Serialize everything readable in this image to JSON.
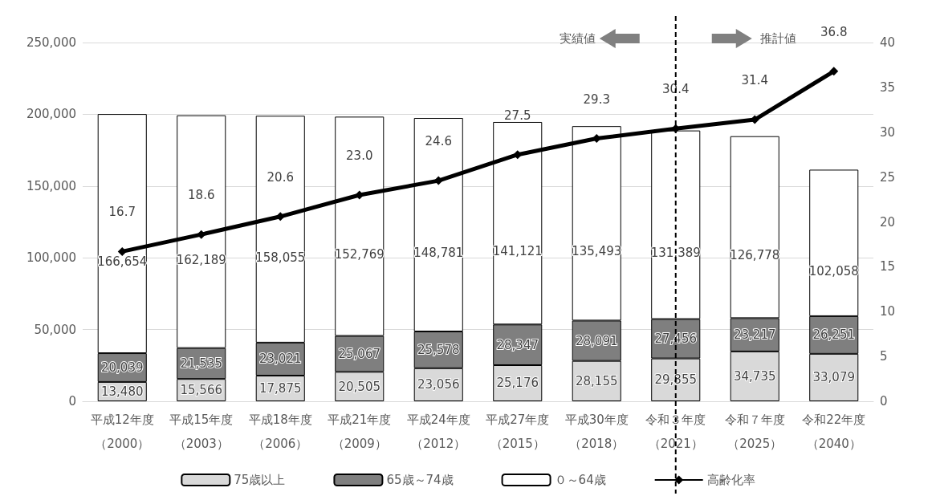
{
  "chart_data": {
    "type": "bar",
    "stacked": true,
    "categories": [
      "平成12年度（2000）",
      "平成15年度（2003）",
      "平成18年度（2006）",
      "平成21年度（2009）",
      "平成24年度（2012）",
      "平成27年度（2015）",
      "平成30年度（2018）",
      "令和３年度（2021）",
      "令和７年度（2025）",
      "令和22年度（2040）"
    ],
    "series": [
      {
        "name": "75歳以上",
        "color": "#d9d9d9",
        "values": [
          13480,
          15566,
          17875,
          20505,
          23056,
          25176,
          28155,
          29855,
          34735,
          33079
        ],
        "value_labels": [
          "13,480",
          "15,566",
          "17,875",
          "20,505",
          "23,056",
          "25,176",
          "28,155",
          "29,855",
          "34,735",
          "33,079"
        ]
      },
      {
        "name": "65歳～74歳",
        "color": "#7f7f7f",
        "values": [
          20039,
          21535,
          23021,
          25067,
          25578,
          28347,
          28091,
          27456,
          23217,
          26251
        ],
        "value_labels": [
          "20,039",
          "21,535",
          "23,021",
          "25,067",
          "25,578",
          "28,347",
          "28,091",
          "27,456",
          "23,217",
          "26,251"
        ]
      },
      {
        "name": "０～64歳",
        "color": "#ffffff",
        "values": [
          166654,
          162189,
          158055,
          152769,
          148781,
          141121,
          135493,
          131389,
          126778,
          102058
        ],
        "value_labels": [
          "166,654",
          "162,189",
          "158,055",
          "152,769",
          "148,781",
          "141,121",
          "135,493",
          "131,389",
          "126,778",
          "102,058"
        ]
      },
      {
        "name": "高齢化率",
        "type": "line",
        "axis": "y2",
        "color": "#000000",
        "marker": "diamond",
        "values": [
          16.7,
          18.6,
          20.6,
          23.0,
          24.6,
          27.5,
          29.3,
          30.4,
          31.4,
          36.8
        ],
        "value_labels": [
          "16.7",
          "18.6",
          "20.6",
          "23.0",
          "24.6",
          "27.5",
          "29.3",
          "30.4",
          "31.4",
          "36.8"
        ]
      }
    ],
    "ylim": [
      0,
      250000
    ],
    "yticks": [
      0,
      {
        "value": 50000,
        "label": "50,000"
      },
      {
        "value": 100000,
        "label": "100,000"
      },
      {
        "value": 150000,
        "label": "150,000"
      },
      {
        "value": 200000,
        "label": "200,000"
      },
      {
        "value": 250000,
        "label": "250,000"
      }
    ],
    "y2lim": [
      0,
      40
    ],
    "y2ticks": [
      0,
      5,
      10,
      15,
      20,
      25,
      30,
      35,
      40
    ],
    "grid": "y",
    "legend": "bottom",
    "annotations": [
      "実績値",
      "推計値"
    ]
  }
}
